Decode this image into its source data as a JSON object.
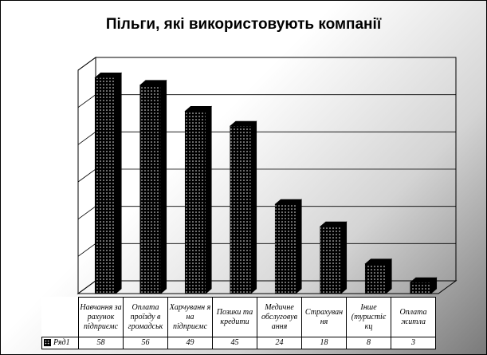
{
  "chart_data": {
    "type": "bar",
    "title": "Пільги, які використовують компанії",
    "categories": [
      "Навчання за рахунок підприємс",
      "Оплата проїзду в громадськ",
      "Харчуванн я на підприємс",
      "Позики та кредити",
      "Медичне обслуговув ання",
      "Страхуван ня",
      "Інше (туристіє кц",
      "Оплата житла"
    ],
    "series": [
      {
        "name": "Ряд1",
        "values": [
          58,
          56,
          49,
          45,
          24,
          18,
          8,
          3
        ]
      }
    ],
    "ylim": [
      0,
      60
    ],
    "grid": true,
    "legend": "data-table",
    "style": {
      "bar_color": "#000000",
      "bar_pattern": "dotted",
      "wall_gradient": [
        "#ffffff",
        "#7a7a7a"
      ]
    }
  }
}
